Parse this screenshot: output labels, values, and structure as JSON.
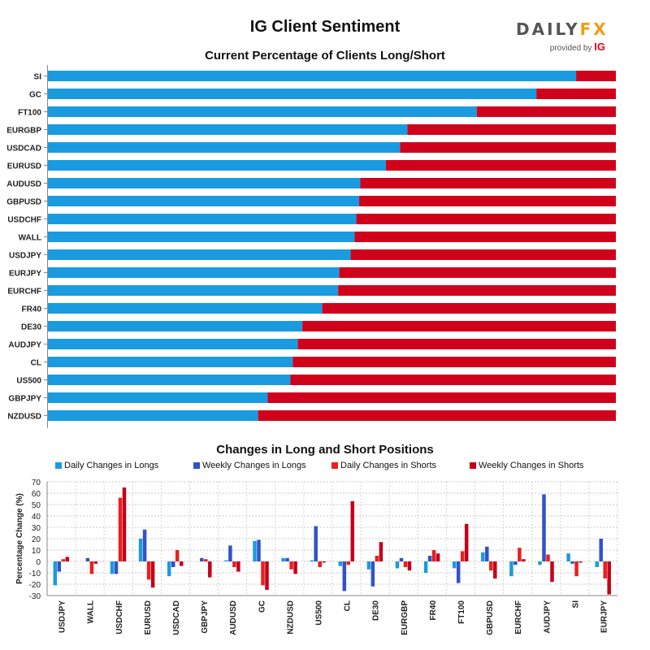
{
  "header": {
    "title": "IG Client Sentiment",
    "brand_daily": "DAILY",
    "brand_fx": "FX",
    "brand_provided": "provided by",
    "brand_ig": "IG"
  },
  "colors": {
    "long": "#1a9be0",
    "short": "#d0021b",
    "daily_longs": "#1a9be0",
    "weekly_longs": "#3352c9",
    "daily_shorts": "#e8201f",
    "weekly_shorts": "#c4001c"
  },
  "chart_data": [
    {
      "type": "bar",
      "orientation": "horizontal",
      "stacked": true,
      "title": "Current Percentage of Clients Long/Short",
      "categories": [
        "SI",
        "GC",
        "FT100",
        "EURGBP",
        "USDCAD",
        "EURUSD",
        "AUDUSD",
        "GBPUSD",
        "USDCHF",
        "WALL",
        "USDJPY",
        "EURJPY",
        "EURCHF",
        "FR40",
        "DE30",
        "AUDJPY",
        "CL",
        "US500",
        "GBPJPY",
        "NZDUSD"
      ],
      "series": [
        {
          "values": [
            93,
            86,
            75.5,
            63.3,
            62,
            59.5,
            55,
            54.8,
            54.3,
            54,
            53.3,
            51.3,
            51.1,
            48.3,
            44.8,
            44,
            43.1,
            42.7,
            38.7,
            37
          ]
        },
        {
          "values": [
            7,
            14,
            24.5,
            36.7,
            38,
            40.5,
            45,
            45.2,
            45.7,
            46,
            46.7,
            48.7,
            48.9,
            51.7,
            55.2,
            56,
            56.9,
            57.3,
            61.3,
            63
          ]
        }
      ],
      "xlim": [
        0,
        100
      ],
      "grid": false
    },
    {
      "type": "bar",
      "title": "Changes in Long and Short Positions",
      "ylabel": "Percentage Change (%)",
      "ylim": [
        -30,
        70
      ],
      "yticks": [
        -30,
        -20,
        -10,
        0,
        10,
        20,
        30,
        40,
        50,
        60,
        70
      ],
      "grid": true,
      "legend": "top",
      "categories": [
        "USDJPY",
        "WALL",
        "USDCHF",
        "EURUSD",
        "USDCAD",
        "GBPJPY",
        "AUDUSD",
        "GC",
        "NZDUSD",
        "US500",
        "CL",
        "DE30",
        "EURGBP",
        "FR40",
        "FT100",
        "GBPUSD",
        "EURCHF",
        "AUDJPY",
        "SI",
        "EURJPY"
      ],
      "series": [
        {
          "name": "Daily Changes in Longs",
          "values": [
            -21,
            0,
            -11,
            20,
            -13,
            0,
            1,
            18,
            3,
            1,
            -4,
            -7,
            -6,
            -10,
            -6,
            8,
            -13,
            -3,
            7,
            -5
          ]
        },
        {
          "name": "Weekly Changes in Longs",
          "values": [
            -9,
            3,
            -11,
            28,
            -5,
            3,
            14,
            19,
            3,
            31,
            -26,
            -22,
            3,
            5,
            -19,
            13,
            -3,
            59,
            -2,
            20
          ]
        },
        {
          "name": "Daily Changes in Shorts",
          "values": [
            2,
            -11,
            56,
            -16,
            10,
            2,
            -5,
            -21,
            -7,
            -5,
            -3,
            5,
            -5,
            10,
            9,
            -8,
            12,
            6,
            -13,
            -15
          ]
        },
        {
          "name": "Weekly Changes in Shorts",
          "values": [
            4,
            -2,
            65,
            -23,
            -4,
            -14,
            -9,
            -25,
            -11,
            -1,
            53,
            17,
            -8,
            7,
            33,
            -15,
            2,
            -18,
            -1,
            -29
          ]
        }
      ]
    }
  ]
}
